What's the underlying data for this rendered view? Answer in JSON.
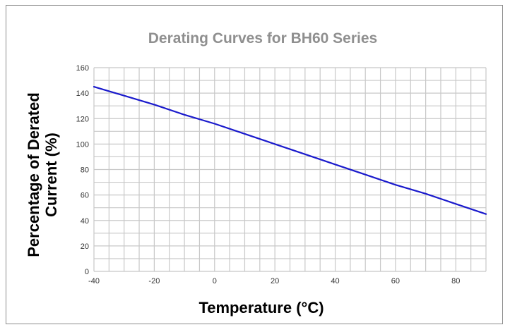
{
  "chart_data": {
    "type": "line",
    "title": "Derating Curves for BH60 Series",
    "xlabel": "Temperature (°C)",
    "ylabel_lines": [
      "Percentage of Derated",
      "Current  (%)"
    ],
    "xlim": [
      -40,
      90
    ],
    "ylim": [
      0,
      160
    ],
    "x_ticks": [
      -40,
      -20,
      0,
      20,
      40,
      60,
      80
    ],
    "y_ticks": [
      0,
      20,
      40,
      60,
      80,
      100,
      120,
      140,
      160
    ],
    "x_grid_step": 5,
    "y_grid_step": 10,
    "grid": true,
    "series": [
      {
        "name": "",
        "color": "#1a1acc",
        "x": [
          -40,
          -30,
          -20,
          -10,
          0,
          10,
          20,
          30,
          40,
          50,
          60,
          70,
          80,
          90
        ],
        "y": [
          145,
          138,
          131,
          123,
          116,
          108,
          100,
          92,
          84,
          76,
          68,
          61,
          53,
          45
        ]
      }
    ]
  },
  "colors": {
    "grid": "#c8c8c8",
    "frame": "#8c8c8c",
    "title": "#8f8f8f"
  }
}
